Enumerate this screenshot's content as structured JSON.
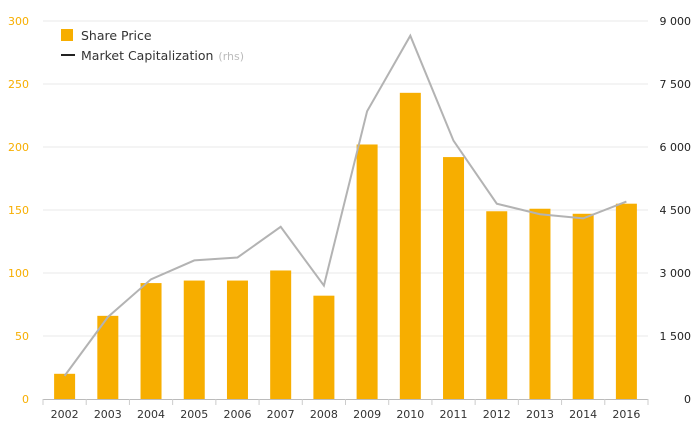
{
  "chart_data": {
    "type": "bar",
    "categories": [
      "2002",
      "2003",
      "2004",
      "2005",
      "2006",
      "2007",
      "2008",
      "2009",
      "2010",
      "2011",
      "2012",
      "2013",
      "2014",
      "2016"
    ],
    "series": [
      {
        "name": "Share Price",
        "type": "bar",
        "axis": "left",
        "color": "#F7AE00",
        "values": [
          20,
          66,
          92,
          94,
          94,
          102,
          82,
          202,
          243,
          192,
          149,
          151,
          147,
          155
        ]
      },
      {
        "name": "Market Capitalization",
        "name_suffix": "(rhs)",
        "type": "line",
        "axis": "right",
        "color": "#B3B3B3",
        "values": [
          550,
          1950,
          2850,
          3300,
          3370,
          4100,
          2700,
          6850,
          8650,
          6150,
          4650,
          4400,
          4300,
          4700
        ]
      }
    ],
    "ylim_left": [
      0,
      300
    ],
    "yticks_left": [
      "0",
      "50",
      "100",
      "150",
      "200",
      "250",
      "300"
    ],
    "ylim_right": [
      0,
      9000
    ],
    "yticks_right": [
      "0",
      "1 500",
      "3 000",
      "4 500",
      "6 000",
      "7 500",
      "9 000"
    ],
    "legend_position": "top-left",
    "grid": true
  }
}
